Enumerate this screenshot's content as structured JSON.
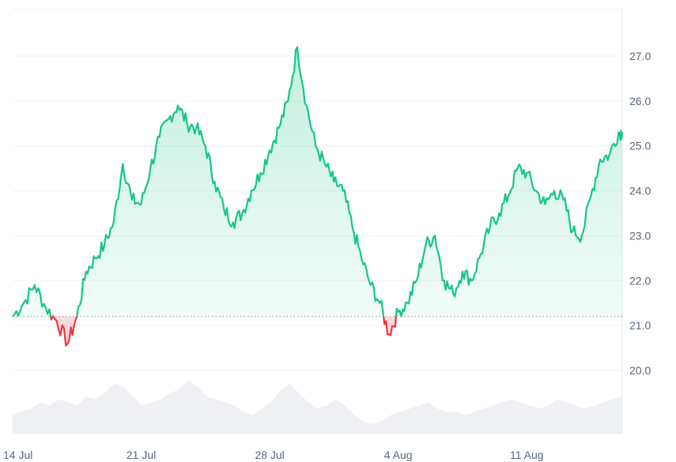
{
  "chart_data": {
    "type": "area",
    "title": "",
    "xlabel": "",
    "ylabel": "",
    "x_tick_labels": [
      "14 Jul",
      "21 Jul",
      "28 Jul",
      "4 Aug",
      "11 Aug"
    ],
    "y_tick_labels": [
      "20.0",
      "21.0",
      "22.0",
      "23.0",
      "24.0",
      "25.0",
      "26.0",
      "27.0"
    ],
    "ylim": [
      19.0,
      27.9
    ],
    "baseline": 21.2,
    "grid": true,
    "colors": {
      "up": "#16c784",
      "down": "#ea3943",
      "volume": "#eef0f3",
      "grid": "#eff2f5"
    },
    "series": [
      {
        "x": [
          0.0,
          0.6,
          1.2,
          1.8,
          2.4,
          3.0,
          3.5,
          4.0,
          4.5,
          5.0,
          5.5,
          6.0,
          6.5,
          7.0,
          7.5,
          8.0,
          8.5,
          9.0,
          9.5,
          10.0,
          10.5,
          11.0,
          11.5,
          12.0,
          12.5,
          13.0,
          13.5,
          14.0,
          14.5,
          15.0,
          15.5,
          16.0,
          16.5,
          17.0,
          17.5,
          18.0,
          18.5,
          19.0,
          19.5,
          20.0,
          20.5,
          21.0,
          21.5,
          22.0,
          22.5,
          23.0,
          23.5,
          24.0,
          24.5,
          25.0,
          25.5,
          26.0,
          26.5,
          27.0,
          27.5,
          28.0,
          28.5,
          29.0,
          29.5,
          30.0,
          30.5,
          31.0,
          31.5,
          32.0,
          32.5,
          33.0,
          33.2
        ],
        "y": [
          21.2,
          21.5,
          21.9,
          21.4,
          21.1,
          20.6,
          21.2,
          22.2,
          22.5,
          22.8,
          23.3,
          24.6,
          23.8,
          23.7,
          24.5,
          25.2,
          25.6,
          25.9,
          25.5,
          25.4,
          25.0,
          24.2,
          23.6,
          23.3,
          23.5,
          24.0,
          24.4,
          24.9,
          25.4,
          26.0,
          27.2,
          25.9,
          25.0,
          24.6,
          24.2,
          24.0,
          23.2,
          22.5,
          21.9,
          21.5,
          20.8,
          21.3,
          21.5,
          22.0,
          22.8,
          23.0,
          22.0,
          21.7,
          22.2,
          22.0,
          22.6,
          23.2,
          23.5,
          23.9,
          24.5,
          24.4,
          24.0,
          23.7,
          24.0,
          23.8,
          23.1,
          23.0,
          23.9,
          24.7,
          24.8,
          25.3,
          25.3
        ]
      }
    ],
    "volume": [
      0.3,
      0.35,
      0.4,
      0.5,
      0.45,
      0.55,
      0.5,
      0.45,
      0.6,
      0.55,
      0.65,
      0.8,
      0.75,
      0.6,
      0.45,
      0.5,
      0.55,
      0.65,
      0.7,
      0.85,
      0.75,
      0.6,
      0.55,
      0.5,
      0.45,
      0.35,
      0.3,
      0.4,
      0.5,
      0.7,
      0.8,
      0.65,
      0.5,
      0.4,
      0.45,
      0.55,
      0.45,
      0.3,
      0.2,
      0.15,
      0.2,
      0.3,
      0.35,
      0.4,
      0.45,
      0.5,
      0.4,
      0.35,
      0.35,
      0.3,
      0.35,
      0.4,
      0.45,
      0.5,
      0.55,
      0.5,
      0.45,
      0.4,
      0.45,
      0.55,
      0.5,
      0.45,
      0.4,
      0.45,
      0.5,
      0.55,
      0.6
    ]
  }
}
